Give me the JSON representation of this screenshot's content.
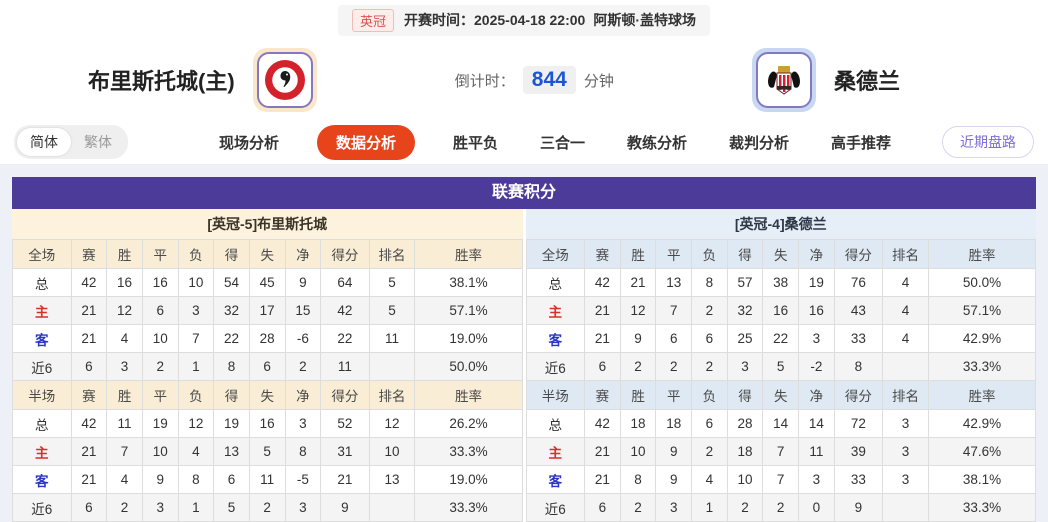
{
  "top": {
    "league_badge": "英冠",
    "kickoff_label": "开赛时间：",
    "kickoff_time": "2025-04-18 22:00",
    "venue": "阿斯顿·盖特球场"
  },
  "header": {
    "home_team": "布里斯托城(主)",
    "away_team": "桑德兰",
    "countdown_label": "倒计时：",
    "countdown_value": "844",
    "countdown_unit": "分钟",
    "home_tile_color": "#fae7c9",
    "away_tile_color": "#c9d8f2",
    "tile_border_color": "#8479c0"
  },
  "nav": {
    "lang_simplified": "简体",
    "lang_traditional": "繁体",
    "tabs": [
      {
        "label": "现场分析",
        "active": false
      },
      {
        "label": "数据分析",
        "active": true
      },
      {
        "label": "胜平负",
        "active": false
      },
      {
        "label": "三合一",
        "active": false
      },
      {
        "label": "教练分析",
        "active": false
      },
      {
        "label": "裁判分析",
        "active": false
      },
      {
        "label": "高手推荐",
        "active": false
      }
    ],
    "recent_button": "近期盘路",
    "active_tab_color": "#e8441c"
  },
  "league_table": {
    "title": "联赛积分",
    "title_color": "#4c3b99",
    "home": {
      "subtitle": "[英冠-5]布里斯托城",
      "full": {
        "header": [
          "全场",
          "赛",
          "胜",
          "平",
          "负",
          "得",
          "失",
          "净",
          "得分",
          "排名",
          "胜率"
        ],
        "rows": [
          {
            "label": "总",
            "type": "total",
            "cells": [
              "42",
              "16",
              "16",
              "10",
              "54",
              "45",
              "9",
              "64",
              "5",
              "38.1%"
            ]
          },
          {
            "label": "主",
            "type": "home",
            "cells": [
              "21",
              "12",
              "6",
              "3",
              "32",
              "17",
              "15",
              "42",
              "5",
              "57.1%"
            ]
          },
          {
            "label": "客",
            "type": "away",
            "cells": [
              "21",
              "4",
              "10",
              "7",
              "22",
              "28",
              "-6",
              "22",
              "11",
              "19.0%"
            ]
          },
          {
            "label": "近6",
            "type": "recent",
            "cells": [
              "6",
              "3",
              "2",
              "1",
              "8",
              "6",
              "2",
              "11",
              "",
              "50.0%"
            ]
          }
        ]
      },
      "half": {
        "header": [
          "半场",
          "赛",
          "胜",
          "平",
          "负",
          "得",
          "失",
          "净",
          "得分",
          "排名",
          "胜率"
        ],
        "rows": [
          {
            "label": "总",
            "type": "total",
            "cells": [
              "42",
              "11",
              "19",
              "12",
              "19",
              "16",
              "3",
              "52",
              "12",
              "26.2%"
            ]
          },
          {
            "label": "主",
            "type": "home",
            "cells": [
              "21",
              "7",
              "10",
              "4",
              "13",
              "5",
              "8",
              "31",
              "10",
              "33.3%"
            ]
          },
          {
            "label": "客",
            "type": "away",
            "cells": [
              "21",
              "4",
              "9",
              "8",
              "6",
              "11",
              "-5",
              "21",
              "13",
              "19.0%"
            ]
          },
          {
            "label": "近6",
            "type": "recent",
            "cells": [
              "6",
              "2",
              "3",
              "1",
              "5",
              "2",
              "3",
              "9",
              "",
              "33.3%"
            ]
          }
        ]
      }
    },
    "away": {
      "subtitle": "[英冠-4]桑德兰",
      "full": {
        "header": [
          "全场",
          "赛",
          "胜",
          "平",
          "负",
          "得",
          "失",
          "净",
          "得分",
          "排名",
          "胜率"
        ],
        "rows": [
          {
            "label": "总",
            "type": "total",
            "cells": [
              "42",
              "21",
              "13",
              "8",
              "57",
              "38",
              "19",
              "76",
              "4",
              "50.0%"
            ]
          },
          {
            "label": "主",
            "type": "home",
            "cells": [
              "21",
              "12",
              "7",
              "2",
              "32",
              "16",
              "16",
              "43",
              "4",
              "57.1%"
            ]
          },
          {
            "label": "客",
            "type": "away",
            "cells": [
              "21",
              "9",
              "6",
              "6",
              "25",
              "22",
              "3",
              "33",
              "4",
              "42.9%"
            ]
          },
          {
            "label": "近6",
            "type": "recent",
            "cells": [
              "6",
              "2",
              "2",
              "2",
              "3",
              "5",
              "-2",
              "8",
              "",
              "33.3%"
            ]
          }
        ]
      },
      "half": {
        "header": [
          "半场",
          "赛",
          "胜",
          "平",
          "负",
          "得",
          "失",
          "净",
          "得分",
          "排名",
          "胜率"
        ],
        "rows": [
          {
            "label": "总",
            "type": "total",
            "cells": [
              "42",
              "18",
              "18",
              "6",
              "28",
              "14",
              "14",
              "72",
              "3",
              "42.9%"
            ]
          },
          {
            "label": "主",
            "type": "home",
            "cells": [
              "21",
              "10",
              "9",
              "2",
              "18",
              "7",
              "11",
              "39",
              "3",
              "47.6%"
            ]
          },
          {
            "label": "客",
            "type": "away",
            "cells": [
              "21",
              "8",
              "9",
              "4",
              "10",
              "7",
              "3",
              "33",
              "3",
              "38.1%"
            ]
          },
          {
            "label": "近6",
            "type": "recent",
            "cells": [
              "6",
              "2",
              "3",
              "1",
              "2",
              "2",
              "0",
              "9",
              "",
              "33.3%"
            ]
          }
        ]
      }
    }
  }
}
